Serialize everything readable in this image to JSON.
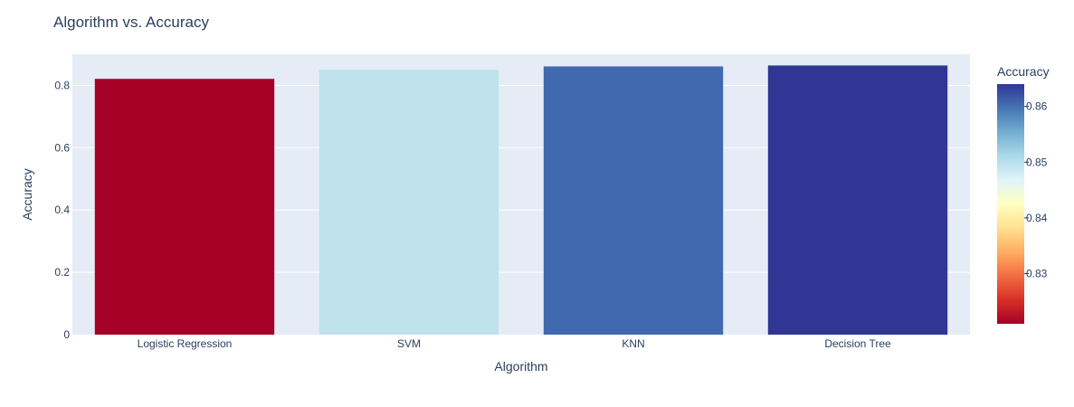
{
  "chart_data": {
    "type": "bar",
    "title": "Algorithm vs. Accuracy",
    "xlabel": "Algorithm",
    "ylabel": "Accuracy",
    "categories": [
      "Logistic Regression",
      "SVM",
      "KNN",
      "Decision Tree"
    ],
    "values": [
      0.821,
      0.85,
      0.861,
      0.864
    ],
    "ylim": [
      0,
      0.9
    ],
    "yticks": [
      "0",
      "0.2",
      "0.4",
      "0.6",
      "0.8"
    ],
    "ytick_values": [
      0,
      0.2,
      0.4,
      0.6,
      0.8
    ],
    "grid": true,
    "plot_background": "#e5ecf6",
    "colorbar": {
      "title": "Accuracy",
      "range": [
        0.821,
        0.864
      ],
      "tick_values": [
        0.83,
        0.84,
        0.85,
        0.86
      ],
      "tick_labels": [
        "0.83",
        "0.84",
        "0.85",
        "0.86"
      ],
      "colorscale": [
        "#a50026",
        "#d73027",
        "#f46d43",
        "#fdae61",
        "#fee090",
        "#ffffbf",
        "#e0f3f8",
        "#abd9e9",
        "#74add1",
        "#4575b4",
        "#313695"
      ]
    },
    "bar_colors": [
      "#a50026",
      "#bee1ec",
      "#4169af",
      "#313695"
    ]
  }
}
